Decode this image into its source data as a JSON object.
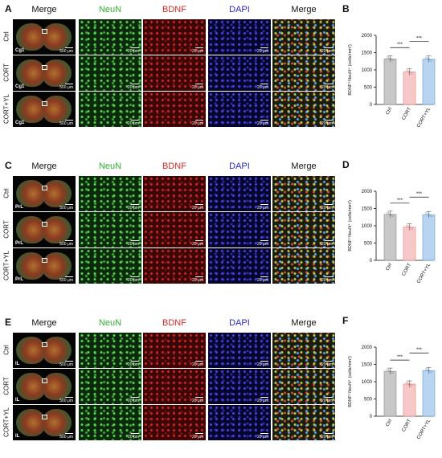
{
  "colors": {
    "neun": "#2fb32f",
    "bdnf": "#d12a2a",
    "dapi": "#2a2acd",
    "ctrl_bar": "#c8c8c8",
    "cort_bar": "#f6c8c8",
    "cortyl_bar": "#b8d4f0"
  },
  "column_headers": {
    "merge": "Merge",
    "neun": "NeuN",
    "bdnf": "BDNF",
    "dapi": "DAPI"
  },
  "groups": [
    "Ctrl",
    "CORT",
    "CORT+YL"
  ],
  "scale_bars": {
    "whole": "500 μm",
    "zoom": "20 μm"
  },
  "panels": [
    {
      "letter": "A",
      "region": "Cg1"
    },
    {
      "letter": "C",
      "region": "PrL"
    },
    {
      "letter": "E",
      "region": "IL"
    }
  ],
  "chart_data": [
    {
      "letter": "B",
      "type": "bar",
      "categories": [
        "Ctrl",
        "CORT",
        "CORT+YL"
      ],
      "values": [
        1320,
        940,
        1310
      ],
      "ylabel": "BDNF⁺NeuN⁺ (cells/mm²)",
      "yticks": [
        0,
        500,
        1000,
        1500,
        2000
      ],
      "ylim": [
        0,
        2000
      ],
      "significance": [
        "***",
        "***"
      ]
    },
    {
      "letter": "D",
      "type": "bar",
      "categories": [
        "Ctrl",
        "CORT",
        "CORT+YL"
      ],
      "values": [
        1330,
        960,
        1320
      ],
      "ylabel": "BDNF⁺NeuN⁺ (cells/mm²)",
      "yticks": [
        0,
        500,
        1000,
        1500,
        2000
      ],
      "ylim": [
        0,
        2000
      ],
      "significance": [
        "***",
        "***"
      ]
    },
    {
      "letter": "F",
      "type": "bar",
      "categories": [
        "Ctrl",
        "CORT",
        "CORT+YL"
      ],
      "values": [
        1300,
        930,
        1320
      ],
      "ylabel": "BDNF⁺NeuN⁺ (cells/mm²)",
      "yticks": [
        0,
        500,
        1000,
        1500,
        2000
      ],
      "ylim": [
        0,
        2000
      ],
      "significance": [
        "***",
        "***"
      ]
    }
  ]
}
